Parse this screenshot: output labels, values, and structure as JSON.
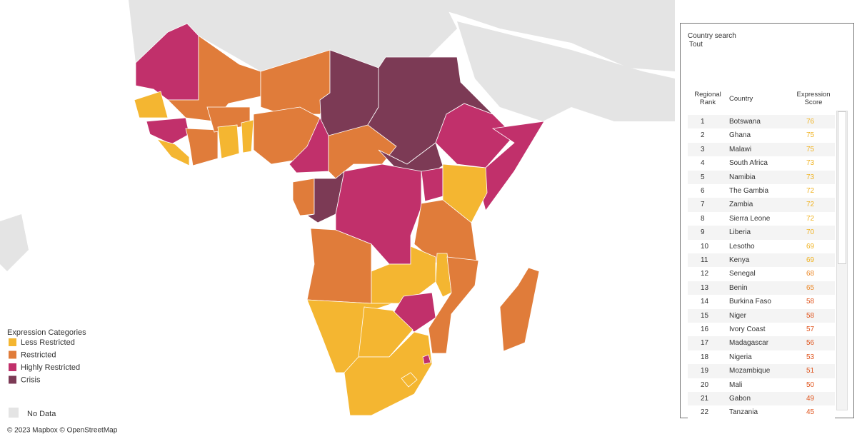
{
  "legend": {
    "title": "Expression Categories",
    "items": [
      {
        "label": "Less Restricted",
        "color": "#f4b631"
      },
      {
        "label": "Restricted",
        "color": "#e07c3a"
      },
      {
        "label": "Highly Restricted",
        "color": "#c1306b"
      },
      {
        "label": "Crisis",
        "color": "#7c3a55"
      }
    ],
    "no_data": {
      "label": "No Data",
      "color": "#e4e4e4"
    }
  },
  "attribution": "© 2023 Mapbox © OpenStreetMap",
  "panel": {
    "search_label": "Country search",
    "search_value": "Tout",
    "columns": [
      "Regional Rank",
      "Country",
      "Expression Score"
    ],
    "rows": [
      {
        "rank": 1,
        "country": "Botswana",
        "score": 76,
        "color": "#f0b323"
      },
      {
        "rank": 2,
        "country": "Ghana",
        "score": 75,
        "color": "#f0b323"
      },
      {
        "rank": 3,
        "country": "Malawi",
        "score": 75,
        "color": "#f0b323"
      },
      {
        "rank": 4,
        "country": "South Africa",
        "score": 73,
        "color": "#f0b323"
      },
      {
        "rank": 5,
        "country": "Namibia",
        "score": 73,
        "color": "#f0b323"
      },
      {
        "rank": 6,
        "country": "The Gambia",
        "score": 72,
        "color": "#f0b323"
      },
      {
        "rank": 7,
        "country": "Zambia",
        "score": 72,
        "color": "#f0b323"
      },
      {
        "rank": 8,
        "country": "Sierra Leone",
        "score": 72,
        "color": "#f0b323"
      },
      {
        "rank": 9,
        "country": "Liberia",
        "score": 70,
        "color": "#f0b323"
      },
      {
        "rank": 10,
        "country": "Lesotho",
        "score": 69,
        "color": "#f0b323"
      },
      {
        "rank": 11,
        "country": "Kenya",
        "score": 69,
        "color": "#f0b323"
      },
      {
        "rank": 12,
        "country": "Senegal",
        "score": 68,
        "color": "#ec8a2a"
      },
      {
        "rank": 13,
        "country": "Benin",
        "score": 65,
        "color": "#ec8a2a"
      },
      {
        "rank": 14,
        "country": "Burkina Faso",
        "score": 58,
        "color": "#e0561f"
      },
      {
        "rank": 15,
        "country": "Niger",
        "score": 58,
        "color": "#e0561f"
      },
      {
        "rank": 16,
        "country": "Ivory Coast",
        "score": 57,
        "color": "#e0561f"
      },
      {
        "rank": 17,
        "country": "Madagascar",
        "score": 56,
        "color": "#e0561f"
      },
      {
        "rank": 18,
        "country": "Nigeria",
        "score": 53,
        "color": "#e0561f"
      },
      {
        "rank": 19,
        "country": "Mozambique",
        "score": 51,
        "color": "#e0561f"
      },
      {
        "rank": 20,
        "country": "Mali",
        "score": 50,
        "color": "#e0561f"
      },
      {
        "rank": 21,
        "country": "Gabon",
        "score": 49,
        "color": "#e0561f"
      },
      {
        "rank": 22,
        "country": "Tanzania",
        "score": 45,
        "color": "#e0561f"
      }
    ]
  }
}
